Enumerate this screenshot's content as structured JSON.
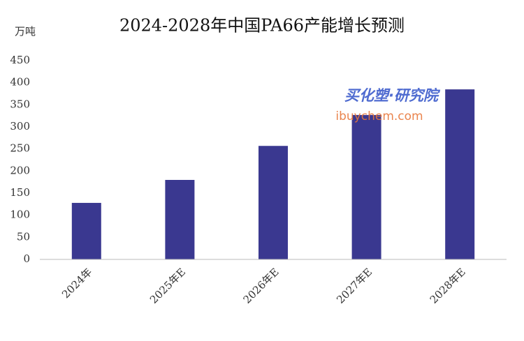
{
  "chart_data": {
    "type": "bar",
    "title": "2024-2028年中国PA66产能增长预测",
    "y_unit": "万吨",
    "categories": [
      "2024年",
      "2025年E",
      "2026年E",
      "2027年E",
      "2028年E"
    ],
    "values": [
      128,
      180,
      257,
      327,
      385
    ],
    "color": "#3a3890",
    "ylim": [
      0,
      450
    ],
    "yticks": [
      0,
      50,
      100,
      150,
      200,
      250,
      300,
      350,
      400,
      450
    ],
    "grid": false,
    "watermark": [
      "买化塑·研究院",
      "ibuychem.com"
    ]
  }
}
